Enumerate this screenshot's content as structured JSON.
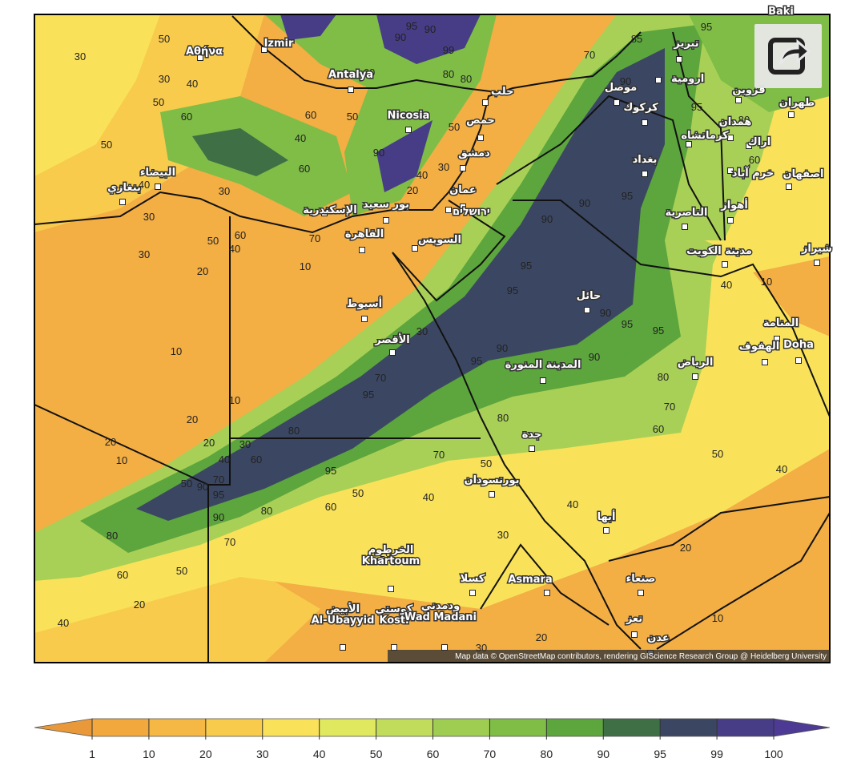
{
  "map": {
    "cities": [
      {
        "labels": [
          "Αθήνα"
        ]
      },
      {
        "labels": [
          "Izmir"
        ]
      },
      {
        "labels": [
          "Antalya"
        ]
      },
      {
        "labels": [
          "Nicosia"
        ]
      },
      {
        "labels": [
          "حلب"
        ]
      },
      {
        "labels": [
          "حمص"
        ]
      },
      {
        "labels": [
          "دمشق"
        ]
      },
      {
        "labels": [
          "عمان"
        ]
      },
      {
        "labels": [
          "ירושלים"
        ]
      },
      {
        "labels": [
          "بور سعيد"
        ]
      },
      {
        "labels": [
          "الإسكندرية"
        ]
      },
      {
        "labels": [
          "القاهرة"
        ]
      },
      {
        "labels": [
          "السويس"
        ]
      },
      {
        "labels": [
          "أسيوط"
        ]
      },
      {
        "labels": [
          "الأقصر"
        ]
      },
      {
        "labels": [
          "بنغازي"
        ]
      },
      {
        "labels": [
          "البيضاء"
        ]
      },
      {
        "labels": [
          "موصل"
        ]
      },
      {
        "labels": [
          "تبريز"
        ]
      },
      {
        "labels": [
          "ارومية"
        ]
      },
      {
        "labels": [
          "قزوين"
        ]
      },
      {
        "labels": [
          "طهران"
        ]
      },
      {
        "labels": [
          "كركوك"
        ]
      },
      {
        "labels": [
          "همدان"
        ]
      },
      {
        "labels": [
          "كرمانشاه"
        ]
      },
      {
        "labels": [
          "اراك"
        ]
      },
      {
        "labels": [
          "بغداد"
        ]
      },
      {
        "labels": [
          "خرم آباد"
        ]
      },
      {
        "labels": [
          "اصفهان"
        ]
      },
      {
        "labels": [
          "أهواز"
        ]
      },
      {
        "labels": [
          "الناصرية"
        ]
      },
      {
        "labels": [
          "مدينة الكويت"
        ]
      },
      {
        "labels": [
          "شيراز"
        ]
      },
      {
        "labels": [
          "حائل"
        ]
      },
      {
        "labels": [
          "المنامة"
        ]
      },
      {
        "labels": [
          "الهفوف"
        ]
      },
      {
        "labels": [
          "Doha"
        ]
      },
      {
        "labels": [
          "الرياض"
        ]
      },
      {
        "labels": [
          "المدينة المنورة"
        ]
      },
      {
        "labels": [
          "جدة"
        ]
      },
      {
        "labels": [
          "بورتسودان"
        ]
      },
      {
        "labels": [
          "أبها"
        ]
      },
      {
        "labels": [
          "الخرطوم",
          "Khartoum"
        ]
      },
      {
        "labels": [
          "كسلا"
        ]
      },
      {
        "labels": [
          "Asmara"
        ]
      },
      {
        "labels": [
          "صنعاء"
        ]
      },
      {
        "labels": [
          "الأبيض",
          "Al-Ubayyid"
        ]
      },
      {
        "labels": [
          "كوستي",
          "Kosti"
        ]
      },
      {
        "labels": [
          "ودمدني",
          "Wad Madani"
        ]
      },
      {
        "labels": [
          "تعز"
        ]
      },
      {
        "labels": [
          "عدن"
        ]
      },
      {
        "labels": [
          "Baki"
        ]
      }
    ],
    "contour_labels": [
      50,
      30,
      30,
      40,
      50,
      60,
      50,
      60,
      40,
      50,
      60,
      30,
      40,
      30,
      30,
      50,
      60,
      40,
      70,
      20,
      10,
      10,
      10,
      20,
      20,
      10,
      20,
      30,
      40,
      60,
      70,
      50,
      90,
      95,
      90,
      70,
      80,
      95,
      60,
      50,
      80,
      95,
      70,
      30,
      20,
      40,
      30,
      50,
      90,
      60,
      80,
      80,
      95,
      90,
      90,
      99,
      70,
      85,
      95,
      90,
      95,
      80,
      60,
      90,
      90,
      95,
      95,
      95,
      90,
      95,
      95,
      90,
      95,
      90,
      80,
      70,
      60,
      50,
      40,
      80,
      70,
      50,
      40,
      40,
      30,
      20,
      60,
      50,
      80,
      20,
      40,
      20,
      30,
      20,
      10,
      10,
      40
    ],
    "attribution": "Map data © OpenStreetMap contributors, rendering GIScience Research Group @ Heidelberg University"
  },
  "colorbar": {
    "ticks": [
      1,
      10,
      20,
      30,
      40,
      50,
      60,
      70,
      80,
      90,
      95,
      99,
      100
    ],
    "colors": [
      "#f2a83c",
      "#f5b845",
      "#f8cb4c",
      "#f9e25a",
      "#dfe85e",
      "#c0dc5a",
      "#9fcd52",
      "#7fbd47",
      "#5da53d",
      "#3f6f45",
      "#3b4762",
      "#463d86"
    ],
    "under_color": "#e9993a",
    "over_color": "#4d3a94"
  }
}
